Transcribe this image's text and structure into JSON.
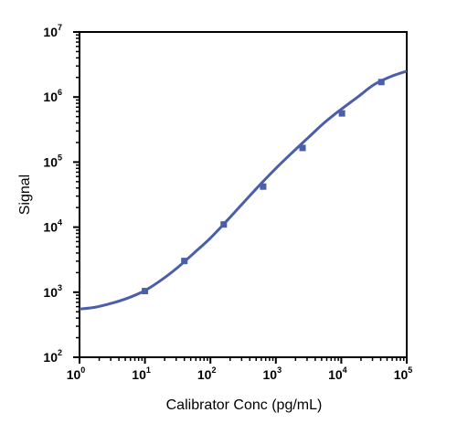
{
  "chart_data": {
    "type": "scatter",
    "title": "",
    "xlabel": "Calibrator Conc (pg/mL)",
    "ylabel": "Signal",
    "x_scale": "log",
    "y_scale": "log",
    "xlim": [
      1,
      100000
    ],
    "ylim": [
      100,
      10000000
    ],
    "x_ticks": [
      {
        "base": "10",
        "exp": "0",
        "value": 1
      },
      {
        "base": "10",
        "exp": "1",
        "value": 10
      },
      {
        "base": "10",
        "exp": "2",
        "value": 100
      },
      {
        "base": "10",
        "exp": "3",
        "value": 1000
      },
      {
        "base": "10",
        "exp": "4",
        "value": 10000
      },
      {
        "base": "10",
        "exp": "5",
        "value": 100000
      }
    ],
    "y_ticks": [
      {
        "base": "10",
        "exp": "2",
        "value": 100
      },
      {
        "base": "10",
        "exp": "3",
        "value": 1000
      },
      {
        "base": "10",
        "exp": "4",
        "value": 10000
      },
      {
        "base": "10",
        "exp": "5",
        "value": 100000
      },
      {
        "base": "10",
        "exp": "6",
        "value": 1000000
      },
      {
        "base": "10",
        "exp": "7",
        "value": 10000000
      }
    ],
    "grid": false,
    "legend": "none",
    "series": [
      {
        "x": [
          10,
          40,
          160,
          640,
          2560,
          10240,
          40960
        ],
        "y": [
          1040,
          3020,
          11000,
          42000,
          165000,
          560000,
          1700000
        ]
      }
    ],
    "fit_curve": {
      "type": "4PL",
      "points": [
        [
          1,
          550
        ],
        [
          1.78,
          590
        ],
        [
          3.16,
          680
        ],
        [
          5.62,
          820
        ],
        [
          10,
          1060
        ],
        [
          17.8,
          1540
        ],
        [
          31.6,
          2400
        ],
        [
          56.2,
          4000
        ],
        [
          100,
          6800
        ],
        [
          178,
          12500
        ],
        [
          316,
          23500
        ],
        [
          562,
          44000
        ],
        [
          1000,
          80000
        ],
        [
          1780,
          140000
        ],
        [
          3160,
          240000
        ],
        [
          5620,
          410000
        ],
        [
          10000,
          650000
        ],
        [
          17800,
          1000000
        ],
        [
          31600,
          1550000
        ],
        [
          56200,
          2050000
        ],
        [
          100000,
          2500000
        ]
      ]
    },
    "colors": {
      "series": "#4a5fa8",
      "axis": "#000000"
    }
  }
}
